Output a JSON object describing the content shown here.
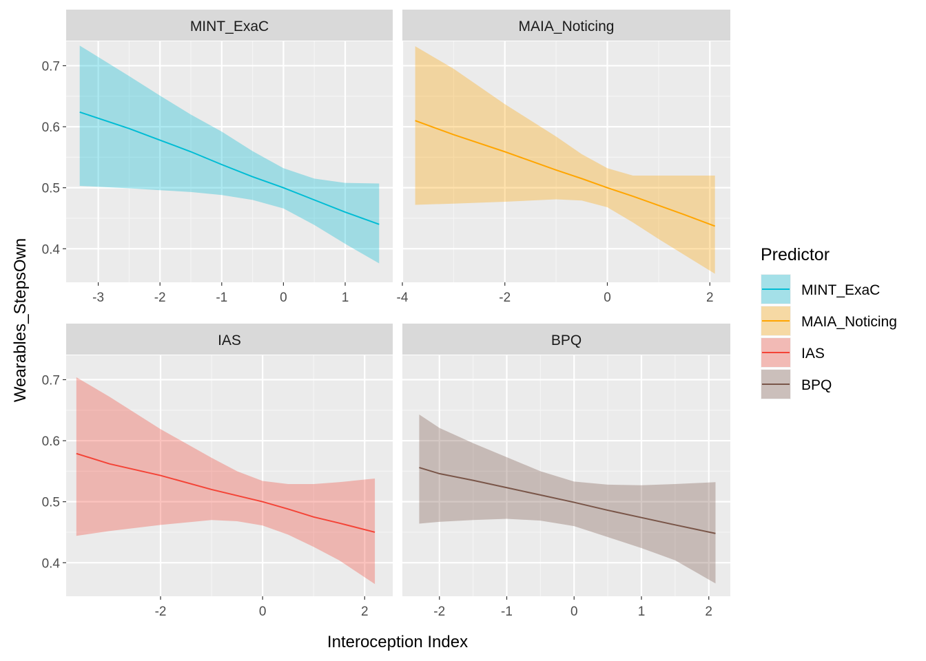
{
  "chart_data": {
    "type": "line",
    "facet_layout": "2x2",
    "xlabel": "Interoception Index",
    "ylabel": "Wearables_StepsOwn",
    "ylim": [
      0.345,
      0.74
    ],
    "y_ticks": [
      0.4,
      0.5,
      0.6,
      0.7
    ],
    "y_tick_labels": [
      "0.4",
      "0.5",
      "0.6",
      "0.7"
    ],
    "grid": true,
    "ribbon_opacity": 0.32,
    "legend": {
      "title": "Predictor",
      "position": "right",
      "entries": [
        {
          "label": "MINT_ExaC",
          "color": "#00BCD4"
        },
        {
          "label": "MAIA_Noticing",
          "color": "#FFA500"
        },
        {
          "label": "IAS",
          "color": "#F44336"
        },
        {
          "label": "BPQ",
          "color": "#795548"
        }
      ]
    },
    "panels": [
      {
        "name": "MINT_ExaC",
        "color": "#00BCD4",
        "xlim": [
          -3.52,
          1.77
        ],
        "x_ticks": [
          -3,
          -2,
          -1,
          0,
          1
        ],
        "x_tick_labels": [
          "-3",
          "-2",
          "-1",
          "0",
          "1"
        ],
        "x": [
          -3.3,
          -2.5,
          -2.0,
          -1.5,
          -1.0,
          -0.5,
          0.0,
          0.5,
          1.0,
          1.55
        ],
        "fit": [
          0.624,
          0.597,
          0.578,
          0.559,
          0.538,
          0.518,
          0.5,
          0.48,
          0.46,
          0.44
        ],
        "lower": [
          0.503,
          0.499,
          0.496,
          0.493,
          0.488,
          0.48,
          0.466,
          0.439,
          0.408,
          0.376
        ],
        "upper": [
          0.733,
          0.683,
          0.651,
          0.62,
          0.592,
          0.56,
          0.532,
          0.515,
          0.508,
          0.507
        ]
      },
      {
        "name": "MAIA_Noticing",
        "color": "#FFA500",
        "xlim": [
          -4.0,
          2.4
        ],
        "x_ticks": [
          -4,
          -2,
          0,
          2
        ],
        "x_tick_labels": [
          "-4",
          "-2",
          "0",
          "2"
        ],
        "x": [
          -3.75,
          -3.0,
          -2.0,
          -1.0,
          -0.5,
          0.0,
          0.5,
          1.0,
          1.5,
          2.1
        ],
        "fit": [
          0.61,
          0.587,
          0.559,
          0.529,
          0.515,
          0.5,
          0.486,
          0.471,
          0.456,
          0.437
        ],
        "lower": [
          0.472,
          0.474,
          0.477,
          0.481,
          0.479,
          0.468,
          0.443,
          0.416,
          0.39,
          0.359
        ],
        "upper": [
          0.732,
          0.695,
          0.637,
          0.584,
          0.555,
          0.532,
          0.52,
          0.52,
          0.52,
          0.52
        ]
      },
      {
        "name": "IAS",
        "color": "#F44336",
        "xlim": [
          -3.85,
          2.55
        ],
        "x_ticks": [
          -2,
          0,
          2
        ],
        "x_tick_labels": [
          "-2",
          "0",
          "2"
        ],
        "x": [
          -3.65,
          -3.0,
          -2.0,
          -1.0,
          -0.5,
          0.0,
          0.5,
          1.0,
          1.5,
          2.2
        ],
        "fit": [
          0.579,
          0.562,
          0.543,
          0.52,
          0.51,
          0.5,
          0.488,
          0.475,
          0.465,
          0.45
        ],
        "lower": [
          0.444,
          0.452,
          0.462,
          0.47,
          0.468,
          0.461,
          0.446,
          0.426,
          0.404,
          0.365
        ],
        "upper": [
          0.704,
          0.672,
          0.619,
          0.572,
          0.55,
          0.534,
          0.529,
          0.529,
          0.532,
          0.538
        ]
      },
      {
        "name": "BPQ",
        "color": "#795548",
        "xlim": [
          -2.55,
          2.32
        ],
        "x_ticks": [
          -2,
          -1,
          0,
          1,
          2
        ],
        "x_tick_labels": [
          "-2",
          "-1",
          "0",
          "1",
          "2"
        ],
        "x": [
          -2.3,
          -2.0,
          -1.5,
          -1.0,
          -0.5,
          0.0,
          0.5,
          1.0,
          1.5,
          2.1
        ],
        "fit": [
          0.556,
          0.546,
          0.535,
          0.523,
          0.511,
          0.499,
          0.486,
          0.474,
          0.462,
          0.448
        ],
        "lower": [
          0.464,
          0.467,
          0.47,
          0.472,
          0.469,
          0.46,
          0.442,
          0.424,
          0.404,
          0.366
        ],
        "upper": [
          0.643,
          0.621,
          0.596,
          0.573,
          0.55,
          0.533,
          0.528,
          0.527,
          0.529,
          0.532
        ]
      }
    ]
  }
}
